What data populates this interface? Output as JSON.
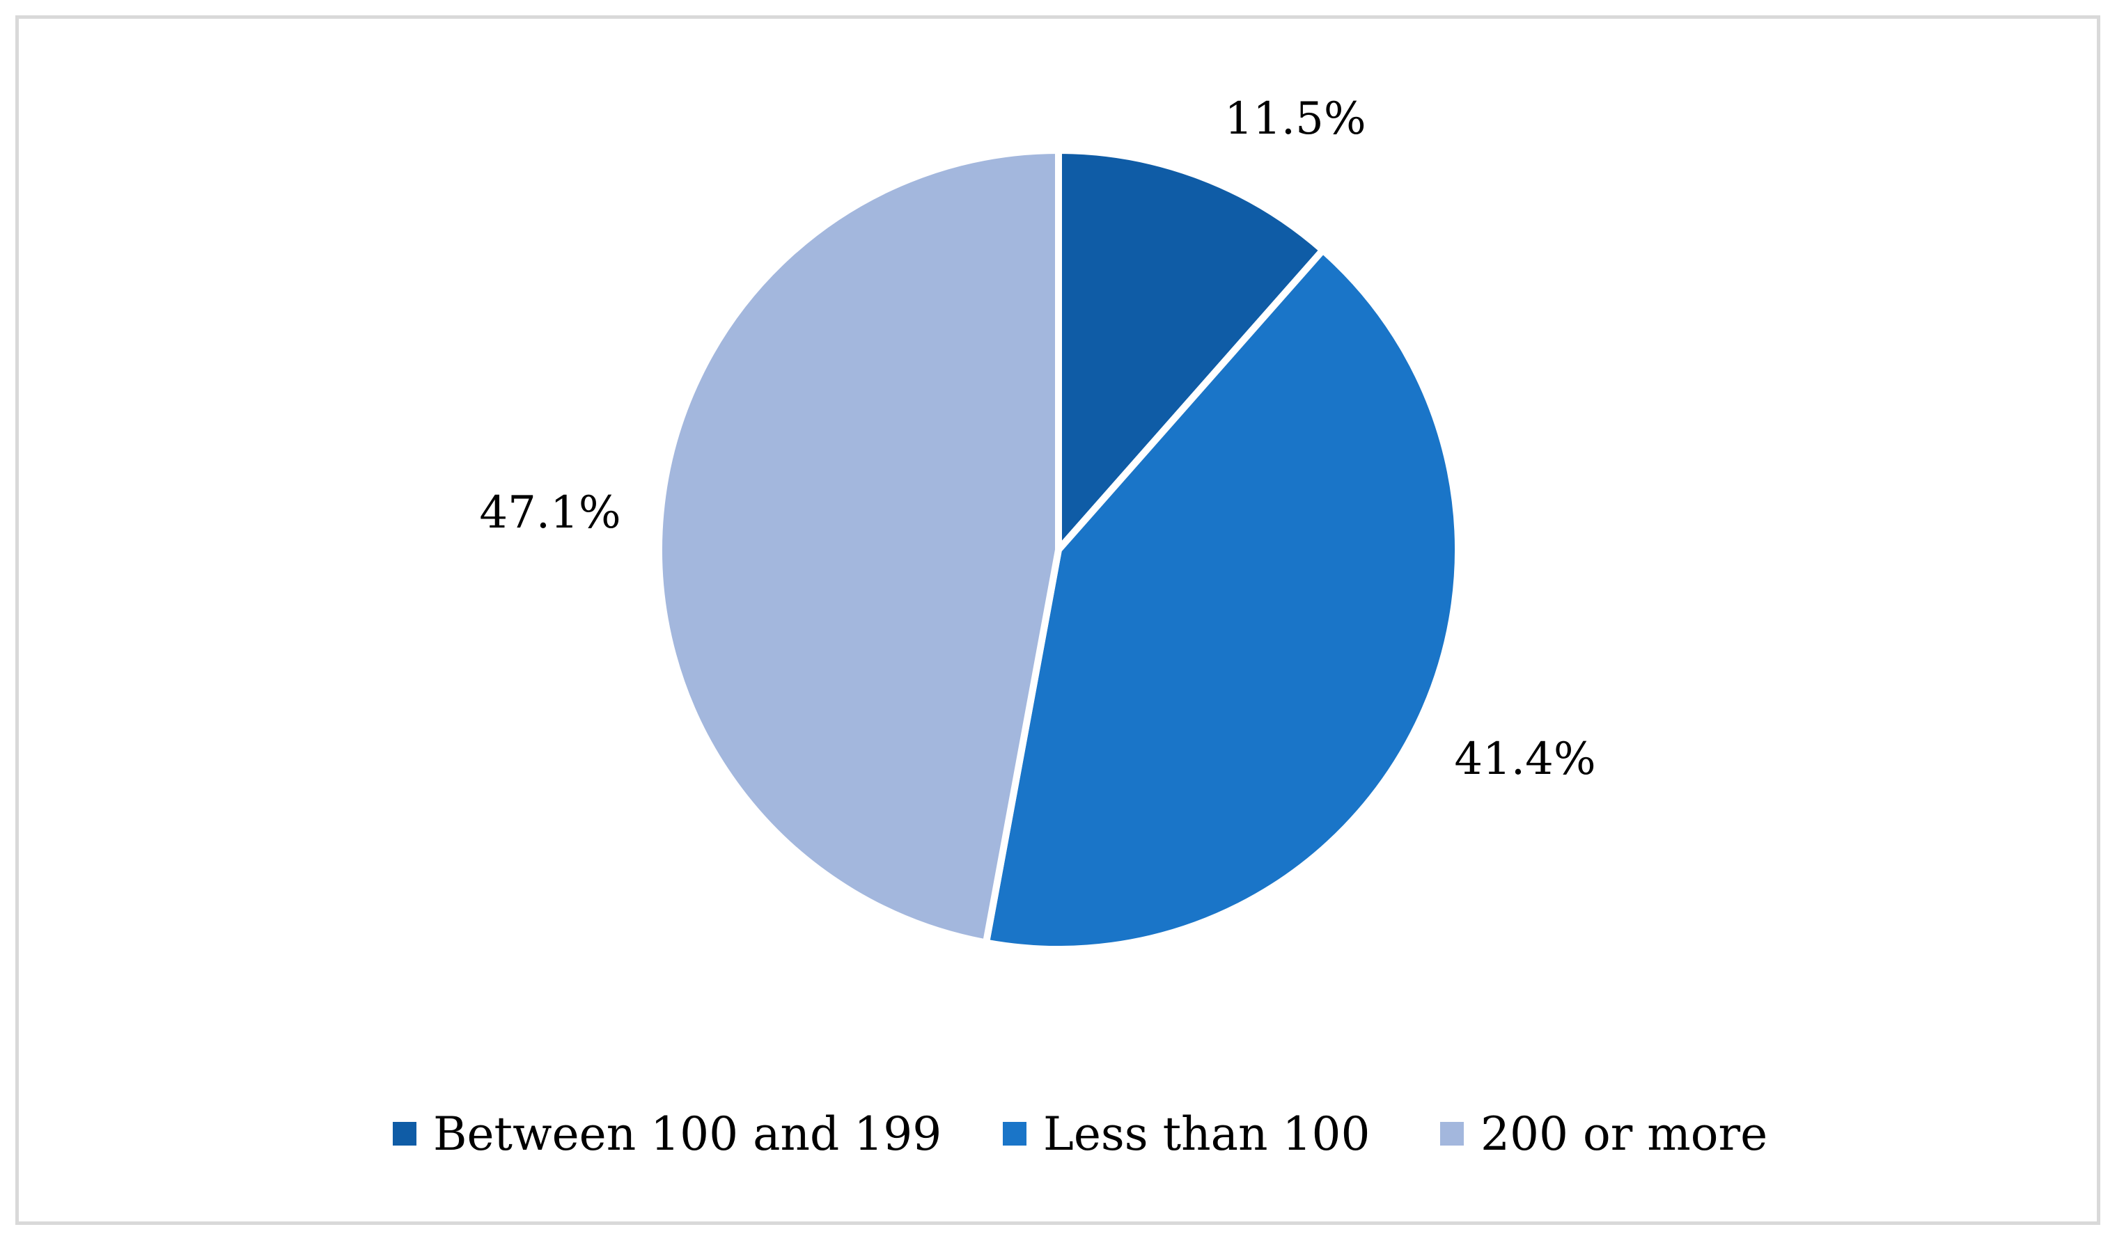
{
  "chart_data": {
    "type": "pie",
    "title": "",
    "categories": [
      "Between 100 and 199",
      "Less than 100",
      "200 or more"
    ],
    "values": [
      11.5,
      41.4,
      47.1
    ],
    "labels": [
      "11.5%",
      "41.4%",
      "47.1%"
    ],
    "colors": [
      "#0f5ca6",
      "#1a75c8",
      "#a3b7dd"
    ],
    "legend": {
      "position": "bottom",
      "items": [
        "Between 100 and 199",
        "Less than 100",
        "200 or more"
      ]
    }
  }
}
